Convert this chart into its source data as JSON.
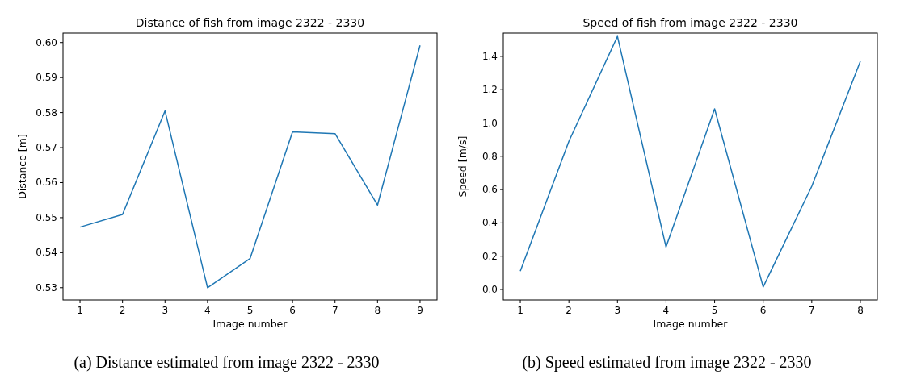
{
  "chart_data": [
    {
      "type": "line",
      "title": "Distance of fish from image 2322 - 2330",
      "xlabel": "Image number",
      "ylabel": "Distance [m]",
      "annotations": [
        "(a) Distance estimated from image 2322 - 2330"
      ],
      "x": [
        1,
        2,
        3,
        4,
        5,
        6,
        7,
        8,
        9
      ],
      "series": [
        {
          "color": "#1f77b4",
          "values": [
            0.5473,
            0.5509,
            0.5805,
            0.53,
            0.5383,
            0.5745,
            0.574,
            0.5536,
            0.5992
          ]
        }
      ],
      "xlim": [
        0.6,
        9.4
      ],
      "xticks": [
        1,
        2,
        3,
        4,
        5,
        6,
        7,
        8,
        9
      ],
      "ylim": [
        0.5265,
        0.6027
      ],
      "yticks": [
        {
          "value": 0.53,
          "label": "0.53"
        },
        {
          "value": 0.54,
          "label": "0.54"
        },
        {
          "value": 0.55,
          "label": "0.55"
        },
        {
          "value": 0.56,
          "label": "0.56"
        },
        {
          "value": 0.57,
          "label": "0.57"
        },
        {
          "value": 0.58,
          "label": "0.58"
        },
        {
          "value": 0.59,
          "label": "0.59"
        },
        {
          "value": 0.6,
          "label": "0.60"
        }
      ]
    },
    {
      "type": "line",
      "title": "Speed of fish from image 2322 - 2330",
      "xlabel": "Image number",
      "ylabel": "Speed [m/s]",
      "annotations": [
        "(b) Speed estimated from image 2322 - 2330"
      ],
      "x": [
        1,
        2,
        3,
        4,
        5,
        6,
        7,
        8
      ],
      "series": [
        {
          "color": "#1f77b4",
          "values": [
            0.11,
            0.89,
            1.52,
            0.255,
            1.085,
            0.015,
            0.62,
            1.37
          ]
        }
      ],
      "xlim": [
        0.65,
        8.35
      ],
      "xticks": [
        1,
        2,
        3,
        4,
        5,
        6,
        7,
        8
      ],
      "ylim": [
        -0.063,
        1.54
      ],
      "yticks": [
        {
          "value": 0,
          "label": "0.0"
        },
        {
          "value": 0.2,
          "label": "0.2"
        },
        {
          "value": 0.4,
          "label": "0.4"
        },
        {
          "value": 0.6,
          "label": "0.6"
        },
        {
          "value": 0.8,
          "label": "0.8"
        },
        {
          "value": 1.0,
          "label": "1.0"
        },
        {
          "value": 1.2,
          "label": "1.2"
        },
        {
          "value": 1.4,
          "label": "1.4"
        }
      ]
    }
  ]
}
